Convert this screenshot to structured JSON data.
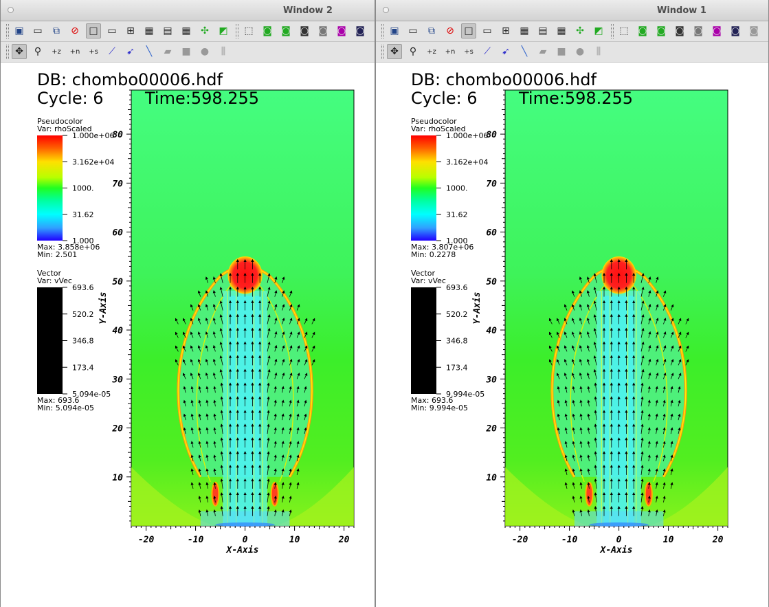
{
  "windows": [
    {
      "id": "window2",
      "title": "Window 2",
      "db_label": "DB: chombo00006.hdf",
      "cycle_label": "Cycle: 6",
      "time_label": "Time:598.255",
      "pseudocolor": {
        "title": "Pseudocolor",
        "var": "Var: rhoScaled",
        "ticks": [
          "1.000e+06",
          "3.162e+04",
          "1000.",
          "31.62",
          "1.000"
        ],
        "max": "Max: 3.858e+06",
        "min": "Min: 2.501"
      },
      "vector": {
        "title": "Vector",
        "var": "Var: vVec",
        "ticks": [
          "693.6",
          "520.2",
          "346.8",
          "173.4",
          "5.094e-05"
        ],
        "max": "Max: 693.6",
        "min": "Min: 5.094e-05"
      }
    },
    {
      "id": "window1",
      "title": "Window 1",
      "db_label": "DB: chombo00006.hdf",
      "cycle_label": "Cycle: 6",
      "time_label": "Time:598.255",
      "pseudocolor": {
        "title": "Pseudocolor",
        "var": "Var: rhoScaled",
        "ticks": [
          "1.000e+06",
          "3.162e+04",
          "1000.",
          "31.62",
          "1.000"
        ],
        "max": "Max: 3.807e+06",
        "min": "Min: 0.2278"
      },
      "vector": {
        "title": "Vector",
        "var": "Var: vVec",
        "ticks": [
          "693.6",
          "520.2",
          "346.8",
          "173.4",
          "9.994e-05"
        ],
        "max": "Max: 693.6",
        "min": "Min: 9.994e-05"
      }
    }
  ],
  "plot": {
    "x_axis_label": "X-Axis",
    "y_axis_label": "Y-Axis",
    "x_ticks": [
      -20,
      -10,
      0,
      10,
      20
    ],
    "y_ticks": [
      10,
      20,
      30,
      40,
      50,
      60,
      70,
      80
    ],
    "x_range": [
      -23,
      22
    ],
    "y_range": [
      0,
      89
    ]
  },
  "toolbar": {
    "row1_icons": [
      "new-window-icon",
      "clear-window-icon",
      "copy-window-icon",
      "delete-window-icon",
      "layout-1x1-icon",
      "layout-1x2-icon",
      "layout-2x2-icon",
      "layout-2x3-icon",
      "layout-2x4-icon",
      "layout-3x3-icon",
      "lock-view-icon",
      "spin-icon",
      "view-3d-icon",
      "camera-save-icon",
      "camera-load-icon",
      "camera-icon",
      "camera-reset-icon",
      "camera-off-icon",
      "camera-lock-icon",
      "camera-extra-icon"
    ],
    "row2_icons": [
      "navigate-icon",
      "zoom-icon",
      "pick-z-icon",
      "pick-n-icon",
      "pick-s-icon",
      "lineout-icon",
      "pick-point-icon",
      "line-tool-icon",
      "plane-tool-icon",
      "box-tool-icon",
      "sphere-tool-icon",
      "axis-tool-icon"
    ]
  },
  "colors": {
    "titlebar": "#d8d8d8",
    "toolbar": "#e4e4e4",
    "background_green": "#38f23a",
    "legend_black": "#000000"
  }
}
